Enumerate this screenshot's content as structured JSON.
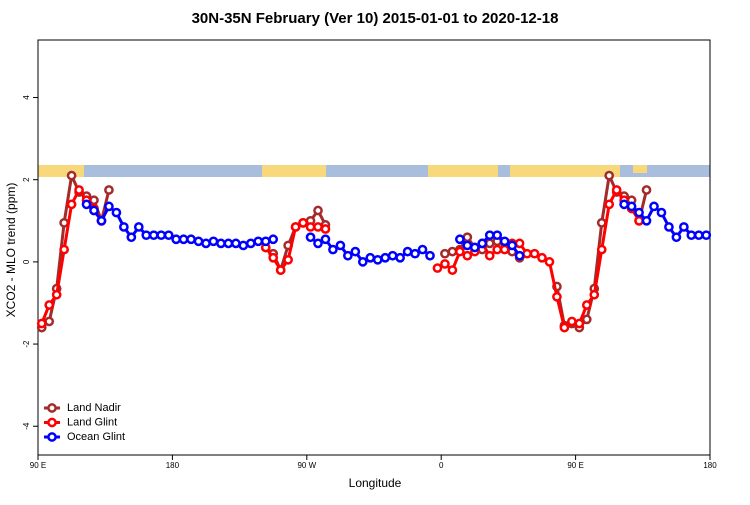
{
  "chart_data": {
    "type": "line",
    "title": "30N-35N February (Ver 10)   2015-01-01 to 2020-12-18",
    "x_label": "Longitude",
    "y_label": "XCO2 - MLO trend (ppm)",
    "x": [
      92.5,
      97.5,
      102.5,
      107.5,
      112.5,
      117.5,
      122.5,
      127.5,
      132.5,
      137.5,
      142.5,
      147.5,
      152.5,
      157.5,
      162.5,
      167.5,
      172.5,
      177.5,
      182.5,
      187.5,
      192.5,
      197.5,
      202.5,
      207.5,
      212.5,
      217.5,
      222.5,
      227.5,
      232.5,
      237.5,
      242.5,
      247.5,
      252.5,
      257.5,
      262.5,
      267.5,
      272.5,
      277.5,
      282.5,
      287.5,
      292.5,
      297.5,
      302.5,
      307.5,
      312.5,
      317.5,
      322.5,
      327.5,
      332.5,
      337.5,
      342.5,
      347.5,
      352.5,
      357.5,
      362.5,
      367.5,
      372.5,
      377.5,
      382.5,
      387.5,
      392.5,
      397.5,
      402.5,
      407.5,
      412.5,
      417.5,
      422.5,
      427.5,
      432.5,
      437.5,
      442.5,
      447.5,
      452.5,
      457.5,
      462.5,
      467.5,
      472.5,
      477.5,
      482.5,
      487.5,
      492.5,
      497.5,
      502.5,
      507.5,
      512.5,
      517.5,
      522.5,
      527.5,
      532.5,
      537.5
    ],
    "series": [
      {
        "name": "Land Nadir",
        "color": "#a52a2a",
        "values": [
          -1.6,
          -1.45,
          -0.65,
          0.95,
          2.1,
          1.7,
          1.6,
          1.5,
          1.0,
          1.75,
          null,
          null,
          null,
          null,
          null,
          null,
          null,
          null,
          null,
          null,
          null,
          null,
          null,
          null,
          null,
          null,
          null,
          null,
          null,
          null,
          0.35,
          0.2,
          -0.2,
          0.4,
          0.85,
          0.95,
          1.0,
          1.25,
          0.9,
          null,
          null,
          null,
          null,
          null,
          null,
          null,
          null,
          null,
          null,
          null,
          null,
          null,
          null,
          null,
          0.2,
          0.25,
          0.3,
          0.6,
          0.35,
          0.3,
          0.45,
          0.5,
          0.45,
          0.25,
          0.1,
          null,
          null,
          null,
          null,
          -0.6,
          -1.55,
          -1.5,
          -1.6,
          -1.4,
          -0.65,
          0.95,
          2.1,
          1.7,
          1.6,
          1.5,
          1.0,
          1.75,
          null,
          null,
          null,
          null,
          null,
          null,
          null,
          null
        ]
      },
      {
        "name": "Land Glint",
        "color": "#ff0000",
        "values": [
          -1.5,
          -1.05,
          -0.8,
          0.3,
          1.4,
          1.75,
          1.5,
          1.3,
          1.0,
          null,
          null,
          null,
          null,
          null,
          null,
          null,
          null,
          null,
          null,
          null,
          null,
          null,
          null,
          null,
          null,
          null,
          null,
          null,
          null,
          null,
          0.35,
          0.1,
          -0.2,
          0.05,
          0.85,
          0.95,
          0.85,
          0.85,
          0.8,
          null,
          null,
          null,
          null,
          null,
          null,
          null,
          null,
          null,
          null,
          null,
          null,
          null,
          null,
          -0.15,
          -0.05,
          -0.2,
          0.25,
          0.15,
          0.25,
          0.45,
          0.15,
          0.3,
          0.3,
          0.45,
          0.45,
          0.2,
          0.2,
          0.1,
          0.0,
          -0.85,
          -1.6,
          -1.45,
          -1.5,
          -1.05,
          -0.8,
          0.3,
          1.4,
          1.75,
          1.5,
          1.3,
          1.0,
          null,
          null,
          null,
          null,
          null,
          null,
          null,
          null,
          null
        ]
      },
      {
        "name": "Ocean Glint",
        "color": "#0000ff",
        "values": [
          null,
          null,
          null,
          null,
          null,
          null,
          1.4,
          1.25,
          1.0,
          1.35,
          1.2,
          0.85,
          0.6,
          0.85,
          0.65,
          0.65,
          0.65,
          0.65,
          0.55,
          0.55,
          0.55,
          0.5,
          0.45,
          0.5,
          0.45,
          0.45,
          0.45,
          0.4,
          0.45,
          0.5,
          0.5,
          0.55,
          null,
          null,
          null,
          null,
          0.6,
          0.45,
          0.55,
          0.3,
          0.4,
          0.15,
          0.25,
          0.0,
          0.1,
          0.05,
          0.1,
          0.15,
          0.1,
          0.25,
          0.2,
          0.3,
          0.15,
          null,
          null,
          null,
          0.55,
          0.4,
          0.35,
          0.45,
          0.65,
          0.65,
          0.5,
          0.4,
          0.15,
          null,
          null,
          null,
          null,
          null,
          null,
          null,
          null,
          null,
          null,
          null,
          null,
          null,
          1.4,
          1.35,
          1.2,
          1.0,
          1.35,
          1.2,
          0.85,
          0.6,
          0.85,
          0.65,
          0.65,
          0.65
        ]
      }
    ],
    "xlim": [
      90,
      540
    ],
    "ylim": [
      -4.7,
      5.4
    ],
    "xticks": [
      {
        "value": 90,
        "label": "90 E"
      },
      180,
      {
        "value": 270,
        "label": "90 W"
      },
      {
        "value": 360,
        "label": "0"
      },
      {
        "value": 450,
        "label": "90 E"
      },
      {
        "value": 540,
        "label": "180"
      }
    ],
    "yticks": [
      -4,
      -2,
      0,
      2,
      4
    ],
    "legend": "bottom-left"
  }
}
